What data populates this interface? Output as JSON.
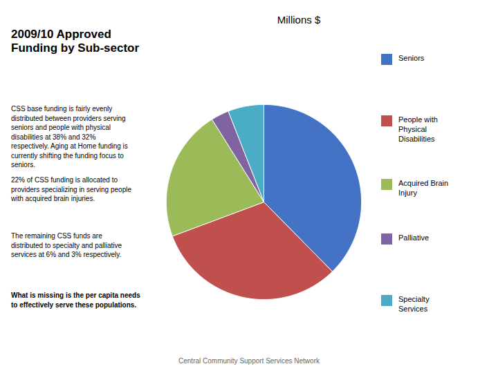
{
  "chart_data": {
    "type": "pie",
    "title": "2009/10 Approved\nFunding by Sub-sector",
    "subtitle": "Millions $",
    "categories": [
      "Seniors",
      "People with\nPhysical\nDisabilities",
      "Acquired Brain\nInjury",
      "Palliative",
      "Specialty\nServices"
    ],
    "values": [
      38,
      32,
      22,
      3,
      6
    ],
    "colors": [
      "#4472C4",
      "#C0504D",
      "#9BBB59",
      "#8064A2",
      "#4BACC6"
    ],
    "annotations": [
      "CSS base funding is fairly evenly\ndistributed between providers serving\nseniors  and people with physical\ndisabilities at 38% and 32%\nrespectively.  Aging at Home funding is\ncurrently shifting the funding focus to\nseniors.",
      "22% of CSS funding is allocated to\nproviders specializing in serving people\nwith  acquired brain injuries.",
      "The remaining CSS funds are\ndistributed to specialty and palliative\nservices  at 6% and 3% respectively.",
      "What is missing is the per capita needs\nto effectively serve these populations."
    ],
    "caption": "Central Community Support Services Network",
    "legend": "right"
  }
}
